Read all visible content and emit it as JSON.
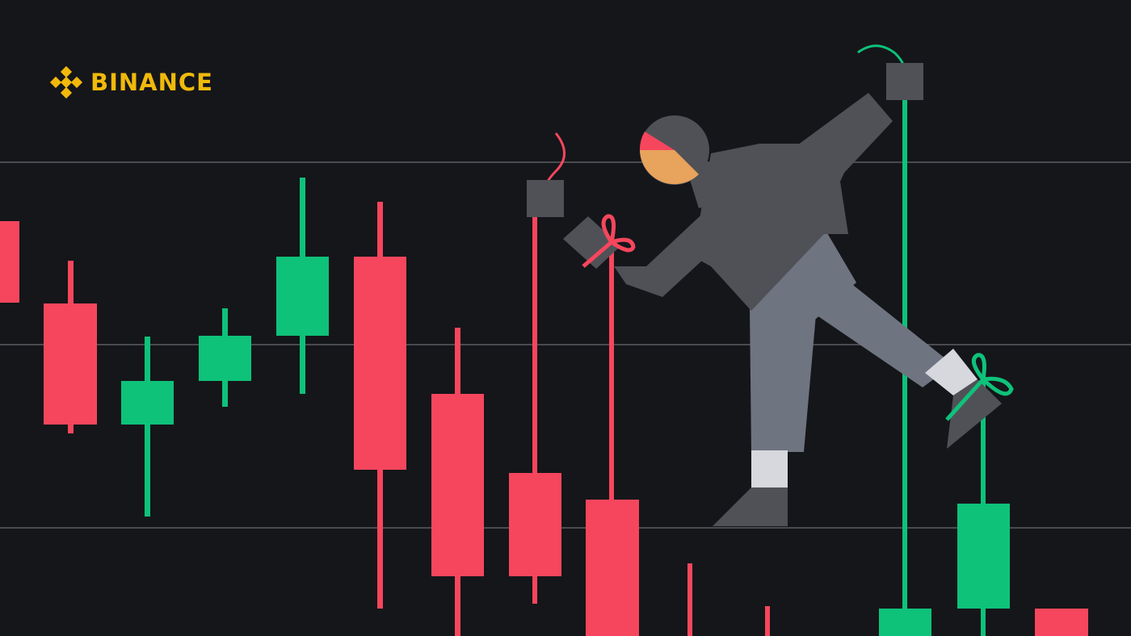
{
  "brand": {
    "name": "BINANCE",
    "logo_icon": "binance-diamond-icon",
    "color": "#F0B90B"
  },
  "colors": {
    "background": "#15161a",
    "gridline": "#4a4b50",
    "up": "#0ec27a",
    "down": "#f6465d",
    "figure_dark": "#505157",
    "figure_light": "#6e7480",
    "shoe": "#d6d8dd"
  },
  "illustration": {
    "subject": "person-puppet-on-strings-icon",
    "head_icon": "pie-chart-icon"
  }
}
